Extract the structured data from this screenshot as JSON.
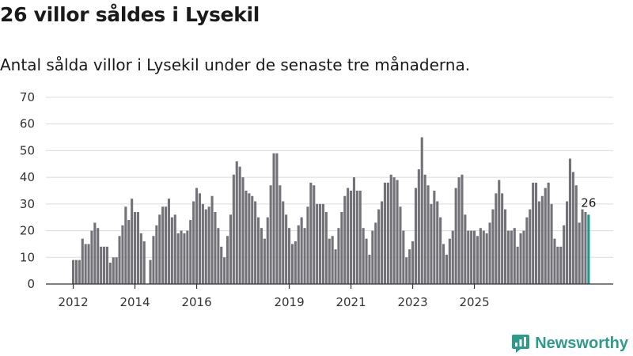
{
  "title": "26 villor såldes i Lysekil",
  "subtitle": "Antal sålda villor i Lysekil under de senaste tre månaderna.",
  "brand": {
    "name": "Newsworthy",
    "logo_icon": "newsworthy-logo-icon"
  },
  "colors": {
    "bar": "#737278",
    "highlight": "#159a8c",
    "grid": "#dcdcdc",
    "brand": "#2d9b8a"
  },
  "chart_data": {
    "type": "bar",
    "title": "Antal sålda villor i Lysekil",
    "xlabel": "",
    "ylabel": "",
    "ylim": [
      0,
      70
    ],
    "yticks": [
      0,
      10,
      20,
      30,
      40,
      50,
      60,
      70
    ],
    "grid": true,
    "x_ticks": [
      {
        "label": "2012",
        "index": 0
      },
      {
        "label": "2014",
        "index": 20
      },
      {
        "label": "2016",
        "index": 40
      },
      {
        "label": "2019",
        "index": 70
      },
      {
        "label": "2021",
        "index": 90
      },
      {
        "label": "2023",
        "index": 110
      },
      {
        "label": "2025",
        "index": 130
      }
    ],
    "values": [
      9,
      9,
      9,
      17,
      15,
      15,
      20,
      23,
      21,
      14,
      14,
      14,
      8,
      10,
      10,
      18,
      22,
      29,
      24,
      32,
      27,
      27,
      19,
      16,
      null,
      9,
      18,
      22,
      26,
      29,
      29,
      32,
      25,
      26,
      19,
      20,
      19,
      20,
      24,
      31,
      36,
      34,
      30,
      28,
      29,
      33,
      27,
      21,
      14,
      10,
      18,
      26,
      41,
      46,
      44,
      40,
      35,
      34,
      33,
      31,
      25,
      21,
      17,
      25,
      37,
      49,
      49,
      37,
      31,
      26,
      21,
      15,
      16,
      22,
      25,
      21,
      29,
      38,
      37,
      30,
      30,
      30,
      27,
      17,
      18,
      13,
      21,
      27,
      33,
      36,
      35,
      40,
      35,
      35,
      21,
      17,
      11,
      20,
      23,
      28,
      31,
      38,
      38,
      41,
      40,
      39,
      29,
      20,
      10,
      13,
      16,
      36,
      43,
      55,
      41,
      37,
      30,
      35,
      31,
      25,
      15,
      11,
      17,
      20,
      36,
      40,
      41,
      26,
      20,
      20,
      20,
      18,
      21,
      20,
      19,
      23,
      28,
      34,
      39,
      34,
      28,
      20,
      20,
      21,
      14,
      19,
      20,
      25,
      28,
      38,
      38,
      31,
      33,
      36,
      38,
      30,
      17,
      14,
      14,
      22,
      31,
      47,
      42,
      37,
      23,
      28,
      27,
      26
    ],
    "highlight_index": 167,
    "highlight_label": "26"
  }
}
